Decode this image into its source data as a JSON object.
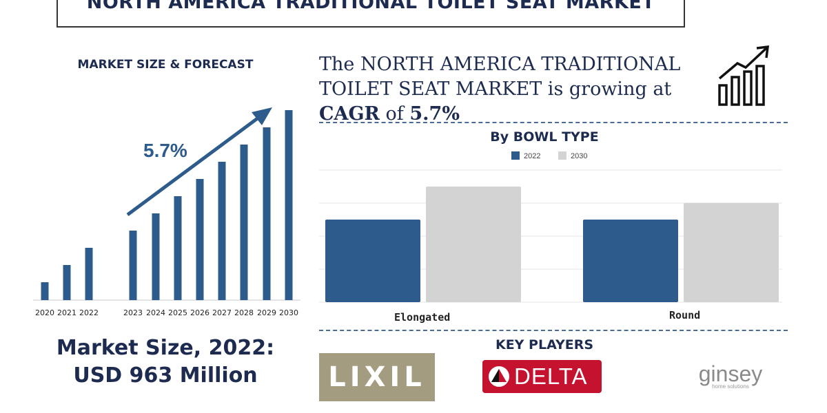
{
  "title": "NORTH AMERICA TRADITIONAL TOILET SEAT MARKET",
  "left_panel": {
    "subtitle": "MARKET SIZE & FORECAST",
    "cagr_label": "5.7%",
    "market_size_line1": "Market Size, 2022:",
    "market_size_line2": "USD 963 Million"
  },
  "headline": {
    "part1": "The NORTH AMERICA TRADITIONAL TOILET SEAT MARKET is growing at",
    "cagr_word": "CAGR",
    "of": "of",
    "cagr_value": "5.7%"
  },
  "icons": {
    "growth": "growth-chart-icon",
    "delta": "delta-logo-icon"
  },
  "key_players": {
    "title": "KEY PLAYERS",
    "lixil": "LIXIL",
    "delta": "DELTA",
    "ginsey": "ginsey",
    "ginsey_tagline": "home solutions"
  },
  "colors": {
    "navy": "#1d2b50",
    "bar_blue": "#2d5c8c",
    "bar_grey": "#d3d3d3",
    "lixil": "#a39c80",
    "delta": "#c4122f"
  },
  "chart_data": [
    {
      "type": "bar",
      "title": "",
      "categories": [
        "2020",
        "2021",
        "2022",
        "2023",
        "2024",
        "2025",
        "2026",
        "2027",
        "2028",
        "2029",
        "2030"
      ],
      "values": [
        1,
        2,
        3,
        4,
        5,
        6,
        7,
        8,
        9,
        10,
        11
      ],
      "annotation": "5.7%",
      "grid": false,
      "note_values": "relative heights only; no axis values shown"
    },
    {
      "type": "bar",
      "title": "By BOWL TYPE",
      "categories": [
        "Elongated",
        "Round"
      ],
      "series": [
        {
          "name": "2022",
          "values": [
            50,
            50
          ],
          "color": "#2d5c8c"
        },
        {
          "name": "2030",
          "values": [
            70,
            60
          ],
          "color": "#d3d3d3"
        }
      ],
      "ylim": [
        0,
        80
      ],
      "grid": true,
      "legend": "top-center"
    }
  ]
}
